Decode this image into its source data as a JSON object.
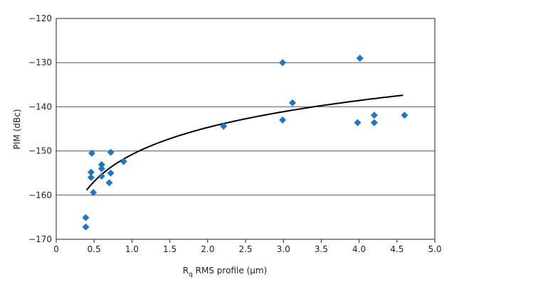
{
  "chart_data": {
    "type": "scatter",
    "title": "",
    "xlabel": {
      "main": "R",
      "sub": "q",
      "rest": " RMS profile (µm)"
    },
    "ylabel": "PIM (dBc)",
    "xlim": [
      0,
      5.0
    ],
    "ylim": [
      -170,
      -120
    ],
    "xticks": [
      "0",
      "0.5",
      "1.0",
      "1.5",
      "2.0",
      "2.5",
      "3.0",
      "3.5",
      "4.0",
      "4.5",
      "5.0"
    ],
    "yticks": [
      "−120",
      "−130",
      "−140",
      "−150",
      "−160",
      "−170"
    ],
    "grid": "horizontal",
    "legend": "none",
    "marker": "diamond",
    "color": "#1f77c4",
    "points": [
      {
        "x": 0.39,
        "y": -165.1
      },
      {
        "x": 0.39,
        "y": -167.2
      },
      {
        "x": 0.46,
        "y": -154.8
      },
      {
        "x": 0.46,
        "y": -156.0
      },
      {
        "x": 0.47,
        "y": -150.5
      },
      {
        "x": 0.49,
        "y": -159.4
      },
      {
        "x": 0.6,
        "y": -153.1
      },
      {
        "x": 0.6,
        "y": -154.0
      },
      {
        "x": 0.6,
        "y": -155.7
      },
      {
        "x": 0.7,
        "y": -157.2
      },
      {
        "x": 0.72,
        "y": -150.3
      },
      {
        "x": 0.72,
        "y": -155.0
      },
      {
        "x": 0.89,
        "y": -152.4
      },
      {
        "x": 2.21,
        "y": -144.4
      },
      {
        "x": 2.99,
        "y": -130.0
      },
      {
        "x": 2.99,
        "y": -143.0
      },
      {
        "x": 3.12,
        "y": -139.1
      },
      {
        "x": 3.98,
        "y": -143.6
      },
      {
        "x": 4.01,
        "y": -129.0
      },
      {
        "x": 4.2,
        "y": -141.9
      },
      {
        "x": 4.2,
        "y": -143.6
      },
      {
        "x": 4.6,
        "y": -141.9
      }
    ],
    "trendline": {
      "type": "logarithmic",
      "a": -150.8,
      "b": 8.82,
      "x_range": [
        0.4,
        4.58
      ],
      "color": "#000000"
    }
  }
}
